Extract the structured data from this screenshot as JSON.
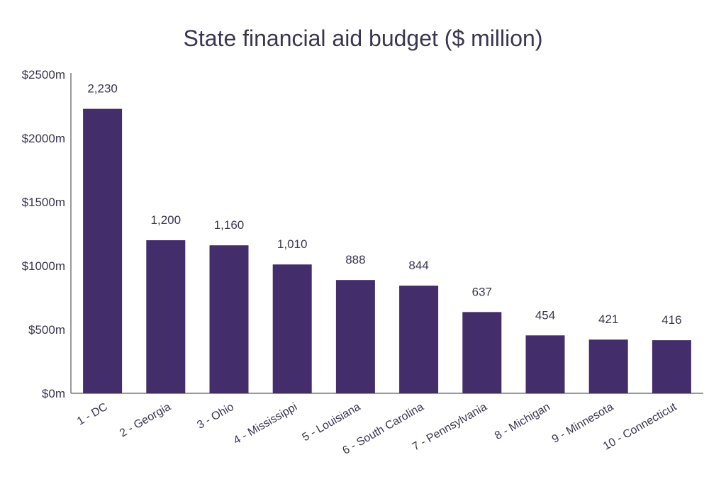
{
  "chart_data": {
    "type": "bar",
    "title": "State financial aid budget ($ million)",
    "categories": [
      "1 - DC",
      "2 - Georgia",
      "3 - Ohio",
      "4 - Mississippi",
      "5 - Louisiana",
      "6 - South Carolina",
      "7 - Pennsylvania",
      "8 - Michigan",
      "9 - Minnesota",
      "10 - Connecticut"
    ],
    "values": [
      2230,
      1200,
      1160,
      1010,
      888,
      844,
      637,
      454,
      421,
      416
    ],
    "data_labels": [
      "2,230",
      "1,200",
      "1,160",
      "1,010",
      "888",
      "844",
      "637",
      "454",
      "421",
      "416"
    ],
    "ylim": [
      0,
      2500
    ],
    "y_ticks": [
      0,
      500,
      1000,
      1500,
      2000,
      2500
    ],
    "y_tick_labels": [
      "$0m",
      "$500m",
      "$1000m",
      "$1500m",
      "$2000m",
      "$2500m"
    ],
    "grid": false,
    "bar_color": "#432d6b",
    "text_color": "#3a3550"
  }
}
